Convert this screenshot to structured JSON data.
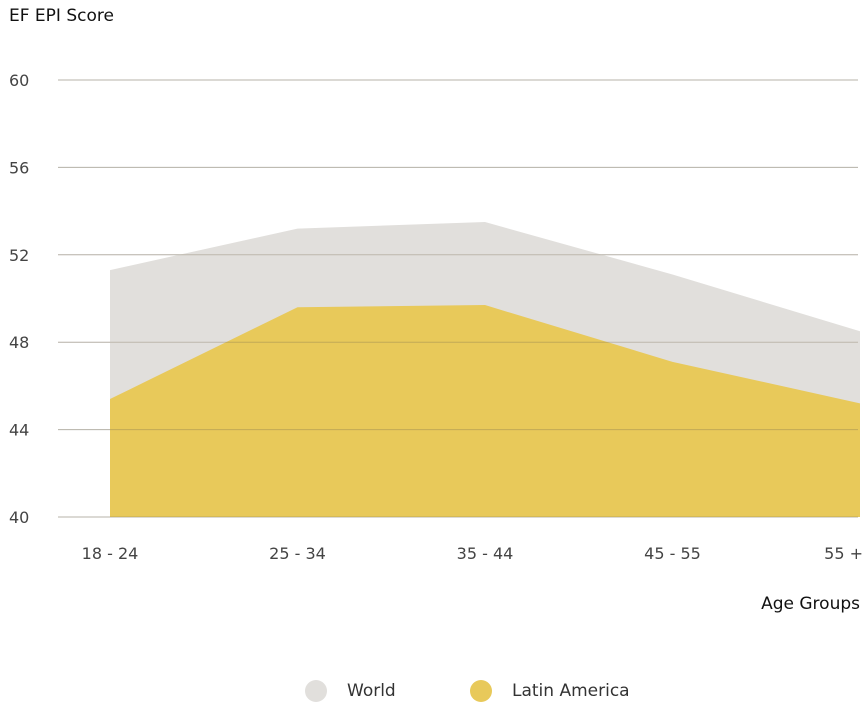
{
  "chart_data": {
    "type": "area",
    "ylabel": "EF EPI Score",
    "xlabel": "Age Groups",
    "categories": [
      "18 - 24",
      "25 - 34",
      "35 - 44",
      "45 - 55",
      "55 +"
    ],
    "ylim": [
      40,
      60
    ],
    "yticks": [
      "40",
      "44",
      "48",
      "52",
      "56",
      "60"
    ],
    "grid": true,
    "legend_position": "bottom-center",
    "series": [
      {
        "name": "World",
        "color": "#e1dfdc",
        "values": [
          51.3,
          53.2,
          53.5,
          51.1,
          48.5
        ]
      },
      {
        "name": "Latin America",
        "color": "#e8c95a",
        "values": [
          45.4,
          49.6,
          49.7,
          47.1,
          45.2
        ]
      }
    ]
  }
}
